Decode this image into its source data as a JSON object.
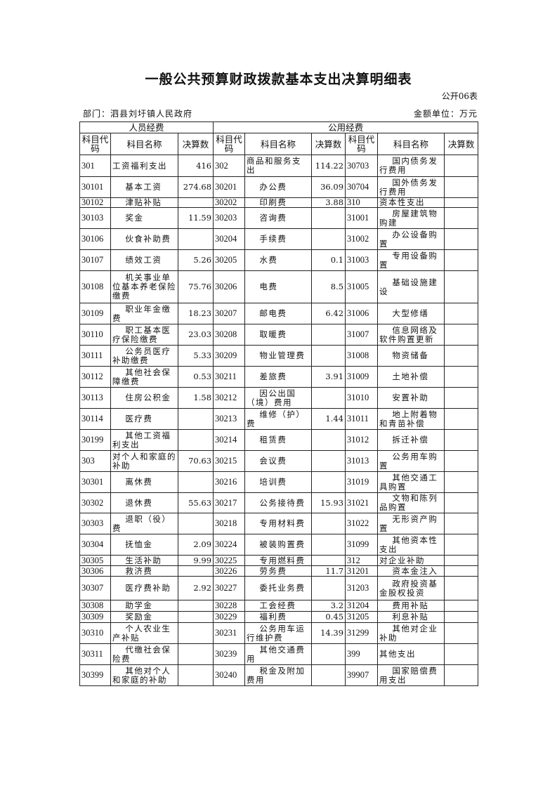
{
  "title": "一般公共预算财政拨款基本支出决算明细表",
  "form_no": "公开06表",
  "department": "部门：泗县刘圩镇人民政府",
  "unit": "金额单位：万元",
  "table": {
    "group_headers": [
      "人员经费",
      "公用经费"
    ],
    "column_headers": [
      "科目代码",
      "科目名称",
      "决算数",
      "科目代码",
      "科目名称",
      "决算数",
      "科目代码",
      "科目名称",
      "决算数"
    ],
    "rows": [
      [
        "301",
        "工资福利支出",
        "416",
        "302",
        "商品和服务支出",
        "114.22",
        "30703",
        "国内债务发行费用",
        ""
      ],
      [
        "30101",
        "基本工资",
        "274.68",
        "30201",
        "办公费",
        "36.09",
        "30704",
        "国外债务发行费用",
        ""
      ],
      [
        "30102",
        "津贴补贴",
        "",
        "30202",
        "印刷费",
        "3.88",
        "310",
        "资本性支出",
        ""
      ],
      [
        "30103",
        "奖金",
        "11.59",
        "30203",
        "咨询费",
        "",
        "31001",
        "房屋建筑物购建",
        ""
      ],
      [
        "30106",
        "伙食补助费",
        "",
        "30204",
        "手续费",
        "",
        "31002",
        "办公设备购置",
        ""
      ],
      [
        "30107",
        "绩效工资",
        "5.26",
        "30205",
        "水费",
        "0.1",
        "31003",
        "专用设备购置",
        ""
      ],
      [
        "30108",
        "机关事业单位基本养老保险缴费",
        "75.76",
        "30206",
        "电费",
        "8.5",
        "31005",
        "基础设施建设",
        ""
      ],
      [
        "30109",
        "职业年金缴费",
        "18.23",
        "30207",
        "邮电费",
        "6.42",
        "31006",
        "大型修缮",
        ""
      ],
      [
        "30110",
        "职工基本医疗保险缴费",
        "23.03",
        "30208",
        "取暖费",
        "",
        "31007",
        "信息网络及软件购置更新",
        ""
      ],
      [
        "30111",
        "公务员医疗补助缴费",
        "5.33",
        "30209",
        "物业管理费",
        "",
        "31008",
        "物资储备",
        ""
      ],
      [
        "30112",
        "其他社会保障缴费",
        "0.53",
        "30211",
        "差旅费",
        "3.91",
        "31009",
        "土地补偿",
        ""
      ],
      [
        "30113",
        "住房公积金",
        "1.58",
        "30212",
        "因公出国（境）费用",
        "",
        "31010",
        "安置补助",
        ""
      ],
      [
        "30114",
        "医疗费",
        "",
        "30213",
        "维修（护）费",
        "1.44",
        "31011",
        "地上附着物和青苗补偿",
        ""
      ],
      [
        "30199",
        "其他工资福利支出",
        "",
        "30214",
        "租赁费",
        "",
        "31012",
        "拆迁补偿",
        ""
      ],
      [
        "303",
        "对个人和家庭的补助",
        "70.63",
        "30215",
        "会议费",
        "",
        "31013",
        "公务用车购置",
        ""
      ],
      [
        "30301",
        "离休费",
        "",
        "30216",
        "培训费",
        "",
        "31019",
        "其他交通工具购置",
        ""
      ],
      [
        "30302",
        "退休费",
        "55.63",
        "30217",
        "公务接待费",
        "15.93",
        "31021",
        "文物和陈列品购置",
        ""
      ],
      [
        "30303",
        "退职（役）费",
        "",
        "30218",
        "专用材料费",
        "",
        "31022",
        "无形资产购置",
        ""
      ],
      [
        "30304",
        "抚恤金",
        "2.09",
        "30224",
        "被装购置费",
        "",
        "31099",
        "其他资本性支出",
        ""
      ],
      [
        "30305",
        "生活补助",
        "9.99",
        "30225",
        "专用燃料费",
        "",
        "312",
        "对企业补助",
        ""
      ],
      [
        "30306",
        "救济费",
        "",
        "30226",
        "劳务费",
        "11.7",
        "31201",
        "资本金注入",
        ""
      ],
      [
        "30307",
        "医疗费补助",
        "2.92",
        "30227",
        "委托业务费",
        "",
        "31203",
        "政府投资基金股权投资",
        ""
      ],
      [
        "30308",
        "助学金",
        "",
        "30228",
        "工会经费",
        "3.2",
        "31204",
        "费用补贴",
        ""
      ],
      [
        "30309",
        "奖励金",
        "",
        "30229",
        "福利费",
        "0.45",
        "31205",
        "利息补贴",
        ""
      ],
      [
        "30310",
        "个人农业生产补贴",
        "",
        "30231",
        "公务用车运行维护费",
        "14.39",
        "31299",
        "其他对企业补助",
        ""
      ],
      [
        "30311",
        "代缴社会保险费",
        "",
        "30239",
        "其他交通费用",
        "",
        "399",
        "其他支出",
        ""
      ],
      [
        "30399",
        "其他对个人和家庭的补助",
        "",
        "30240",
        "税金及附加费用",
        "",
        "39907",
        "国家赔偿费用支出",
        ""
      ]
    ]
  }
}
